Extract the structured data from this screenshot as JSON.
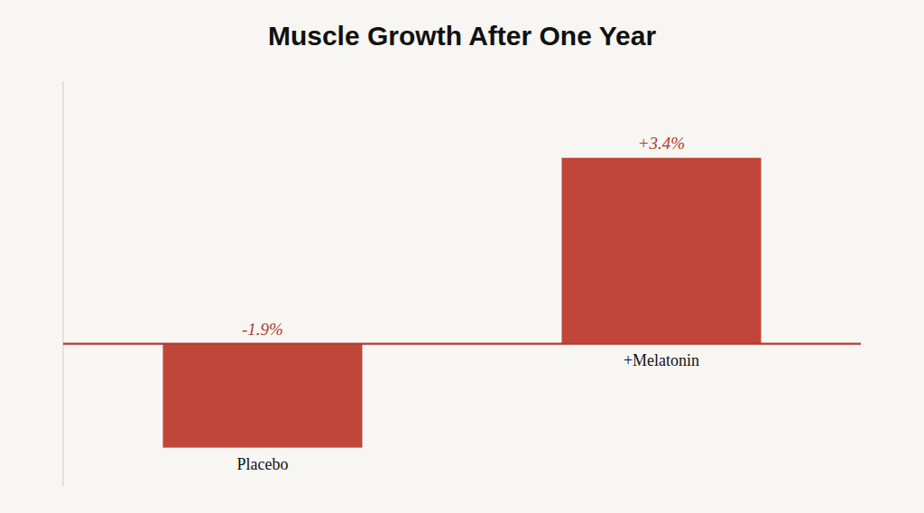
{
  "chart_data": {
    "type": "bar",
    "title": "Muscle Growth After One Year",
    "categories": [
      "Placebo",
      "+Melatonin"
    ],
    "values": [
      -1.9,
      3.4
    ],
    "value_labels": [
      "-1.9%",
      "+3.4%"
    ],
    "data_labels": true,
    "color": "#c0463a",
    "ylim": [
      -2.6,
      4.8
    ],
    "grid": false,
    "tick_labels": "x"
  }
}
